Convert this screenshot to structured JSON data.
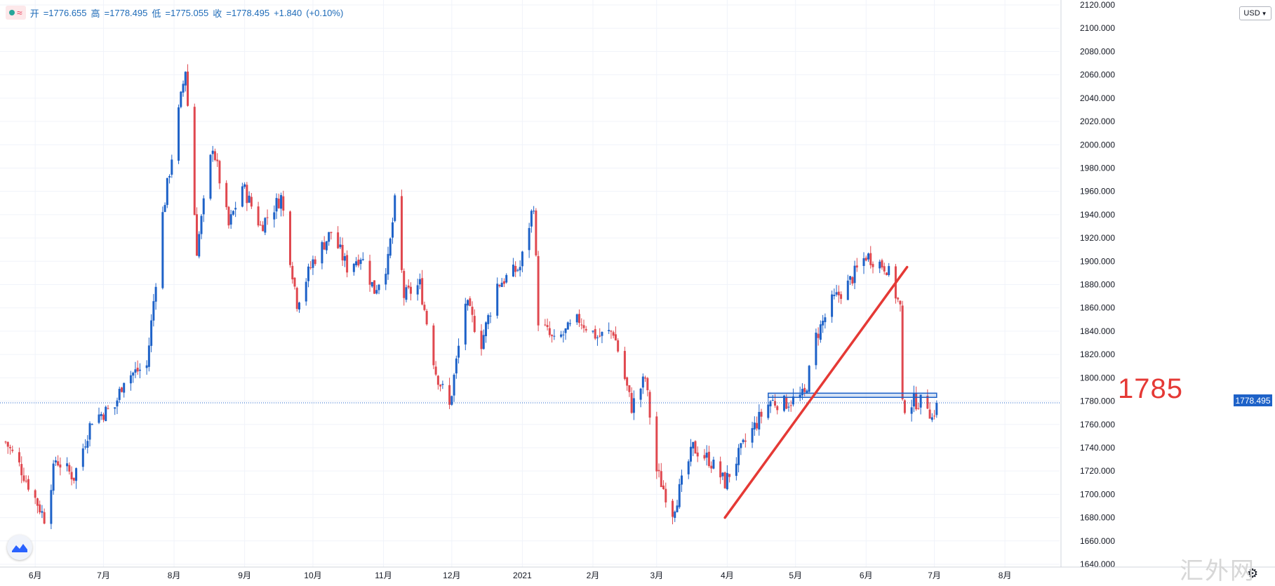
{
  "legend": {
    "open_label": "开",
    "open": "=1776.655",
    "high_label": "高",
    "high": "=1778.495",
    "low_label": "低",
    "low": "=1775.055",
    "close_label": "收",
    "close": "=1778.495",
    "change": "+1.840",
    "change_pct": "(+0.10%)",
    "icons": [
      "dot-icon",
      "wave-icon"
    ]
  },
  "currency": {
    "label": "USD",
    "icon": "chevron-down-icon"
  },
  "last_price": "1778.495",
  "annotation": "1785",
  "watermark": "汇外网",
  "colors": {
    "up": "#1e62c8",
    "down": "#e0484f",
    "trendline": "#e53935",
    "level_box": "#1e62c8",
    "price_line": "#1e62c8",
    "grid": "#f0f3fa"
  },
  "chart_data": {
    "type": "candlestick",
    "title": "",
    "y_ticks": [
      "2120.000",
      "2100.000",
      "2080.000",
      "2060.000",
      "2040.000",
      "2020.000",
      "2000.000",
      "1980.000",
      "1960.000",
      "1940.000",
      "1920.000",
      "1900.000",
      "1880.000",
      "1860.000",
      "1840.000",
      "1820.000",
      "1800.000",
      "1780.000",
      "1760.000",
      "1740.000",
      "1720.000",
      "1700.000",
      "1680.000",
      "1660.000",
      "1640.000"
    ],
    "ylim": [
      1640,
      2120
    ],
    "x_ticks": [
      "6月",
      "7月",
      "8月",
      "9月",
      "10月",
      "11月",
      "12月",
      "2021",
      "2月",
      "3月",
      "4月",
      "5月",
      "6月",
      "7月",
      "8月"
    ],
    "x_range": [
      "2020-05-19",
      "2021-08-25"
    ],
    "anchors": [
      {
        "date": "2020-05-19",
        "price": 1745
      },
      {
        "date": "2020-05-25",
        "price": 1725
      },
      {
        "date": "2020-06-05",
        "price": 1680
      },
      {
        "date": "2020-06-10",
        "price": 1730
      },
      {
        "date": "2020-06-18",
        "price": 1715
      },
      {
        "date": "2020-06-26",
        "price": 1765
      },
      {
        "date": "2020-07-06",
        "price": 1775
      },
      {
        "date": "2020-07-10",
        "price": 1800
      },
      {
        "date": "2020-07-20",
        "price": 1810
      },
      {
        "date": "2020-07-27",
        "price": 1940
      },
      {
        "date": "2020-08-06",
        "price": 2065
      },
      {
        "date": "2020-08-11",
        "price": 1910
      },
      {
        "date": "2020-08-18",
        "price": 2000
      },
      {
        "date": "2020-08-25",
        "price": 1930
      },
      {
        "date": "2020-08-31",
        "price": 1965
      },
      {
        "date": "2020-09-08",
        "price": 1930
      },
      {
        "date": "2020-09-17",
        "price": 1955
      },
      {
        "date": "2020-09-24",
        "price": 1865
      },
      {
        "date": "2020-10-01",
        "price": 1900
      },
      {
        "date": "2020-10-09",
        "price": 1925
      },
      {
        "date": "2020-10-16",
        "price": 1895
      },
      {
        "date": "2020-10-22",
        "price": 1905
      },
      {
        "date": "2020-10-28",
        "price": 1875
      },
      {
        "date": "2020-11-03",
        "price": 1900
      },
      {
        "date": "2020-11-06",
        "price": 1950
      },
      {
        "date": "2020-11-10",
        "price": 1870
      },
      {
        "date": "2020-11-17",
        "price": 1880
      },
      {
        "date": "2020-11-24",
        "price": 1805
      },
      {
        "date": "2020-11-30",
        "price": 1775
      },
      {
        "date": "2020-12-07",
        "price": 1865
      },
      {
        "date": "2020-12-14",
        "price": 1830
      },
      {
        "date": "2020-12-21",
        "price": 1880
      },
      {
        "date": "2020-12-31",
        "price": 1895
      },
      {
        "date": "2021-01-06",
        "price": 1950
      },
      {
        "date": "2021-01-08",
        "price": 1850
      },
      {
        "date": "2021-01-15",
        "price": 1830
      },
      {
        "date": "2021-01-26",
        "price": 1850
      },
      {
        "date": "2021-02-03",
        "price": 1835
      },
      {
        "date": "2021-02-10",
        "price": 1840
      },
      {
        "date": "2021-02-18",
        "price": 1775
      },
      {
        "date": "2021-02-24",
        "price": 1800
      },
      {
        "date": "2021-03-01",
        "price": 1720
      },
      {
        "date": "2021-03-08",
        "price": 1685
      },
      {
        "date": "2021-03-17",
        "price": 1740
      },
      {
        "date": "2021-03-24",
        "price": 1730
      },
      {
        "date": "2021-03-31",
        "price": 1710
      },
      {
        "date": "2021-04-09",
        "price": 1745
      },
      {
        "date": "2021-04-15",
        "price": 1765
      },
      {
        "date": "2021-04-20",
        "price": 1780
      },
      {
        "date": "2021-04-26",
        "price": 1778
      },
      {
        "date": "2021-05-05",
        "price": 1785
      },
      {
        "date": "2021-05-10",
        "price": 1835
      },
      {
        "date": "2021-05-17",
        "price": 1865
      },
      {
        "date": "2021-05-24",
        "price": 1880
      },
      {
        "date": "2021-06-01",
        "price": 1905
      },
      {
        "date": "2021-06-10",
        "price": 1895
      },
      {
        "date": "2021-06-16",
        "price": 1860
      },
      {
        "date": "2021-06-17",
        "price": 1775
      },
      {
        "date": "2021-06-22",
        "price": 1780
      },
      {
        "date": "2021-06-28",
        "price": 1778
      },
      {
        "date": "2021-06-30",
        "price": 1765
      },
      {
        "date": "2021-07-02",
        "price": 1778.5
      }
    ],
    "trendline": {
      "start": {
        "date": "2021-03-31",
        "price": 1680
      },
      "end": {
        "date": "2021-06-19",
        "price": 1895
      }
    },
    "level": {
      "price": 1785,
      "from": "2021-04-19",
      "to": "2021-07-02",
      "label": "1785"
    },
    "last_price_line": 1778.495
  }
}
